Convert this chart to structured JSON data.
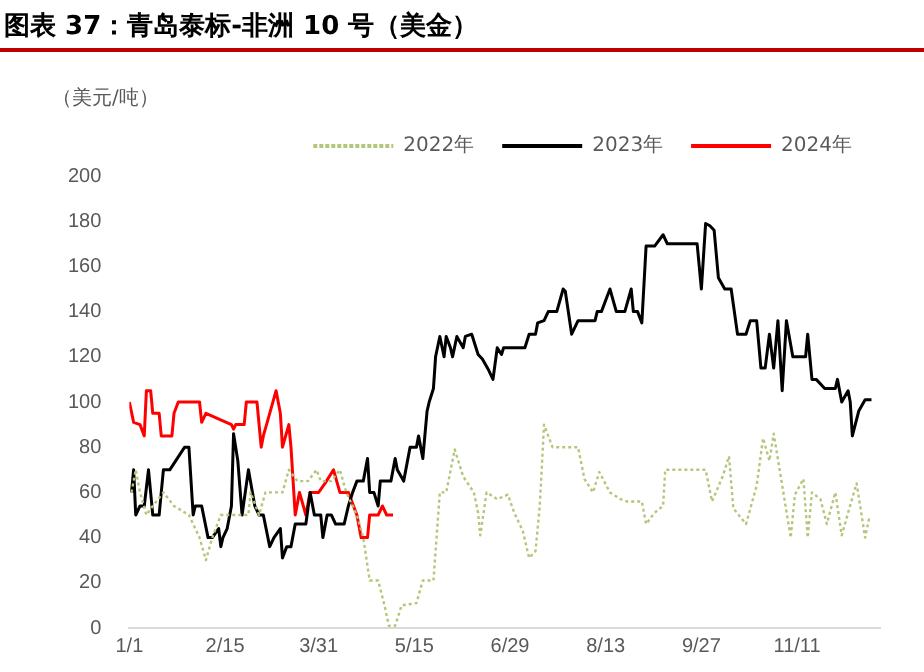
{
  "chart_data": {
    "type": "line",
    "title": "图表 37：青岛泰标-非洲 10 号（美金）",
    "ylabel": "（美元/吨）",
    "legend": "top",
    "grid": false,
    "marker": "none",
    "xlim": [
      "--01-01",
      "--12-20"
    ],
    "xticks": [
      {
        "value": "--01-01",
        "label": "1/1"
      },
      {
        "value": "--02-15",
        "label": "2/15"
      },
      {
        "value": "--03-31",
        "label": "3/31"
      },
      {
        "value": "--05-15",
        "label": "5/15"
      },
      {
        "value": "--06-29",
        "label": "6/29"
      },
      {
        "value": "--08-13",
        "label": "8/13"
      },
      {
        "value": "--09-27",
        "label": "9/27"
      },
      {
        "value": "--11-11",
        "label": "11/11"
      }
    ],
    "ylim": [
      0,
      200
    ],
    "yticks": [
      0,
      20,
      40,
      60,
      80,
      100,
      120,
      140,
      160,
      180,
      200
    ],
    "series": [
      {
        "name": "2022年",
        "color": "#b3c77a",
        "line_style": "dotted",
        "x": [
          "--01-02",
          "--01-04",
          "--01-06",
          "--01-09",
          "--01-12",
          "--01-17",
          "--01-22",
          "--01-29",
          "--02-03",
          "--02-06",
          "--02-09",
          "--02-13",
          "--02-26",
          "--02-27",
          "--03-03",
          "--03-06",
          "--03-14",
          "--03-17",
          "--03-21",
          "--03-26",
          "--03-30",
          "--04-01",
          "--04-06",
          "--04-10",
          "--04-13",
          "--04-18",
          "--04-21",
          "--04-24",
          "--04-28",
          "--05-01",
          "--05-03",
          "--05-06",
          "--05-09",
          "--05-16",
          "--05-19",
          "--05-24",
          "--05-27",
          "--05-30",
          "--06-03",
          "--06-07",
          "--06-12",
          "--06-14",
          "--06-15",
          "--06-18",
          "--06-23",
          "--06-28",
          "--07-01",
          "--07-05",
          "--07-08",
          "--07-11",
          "--07-13",
          "--07-15",
          "--07-19",
          "--07-31",
          "--08-03",
          "--08-07",
          "--08-10",
          "--08-15",
          "--08-20",
          "--08-23",
          "--08-30",
          "--09-01",
          "--09-05",
          "--09-09",
          "--09-10",
          "--09-29",
          "--10-02",
          "--10-07",
          "--10-10",
          "--10-12",
          "--10-18",
          "--10-23",
          "--10-26",
          "--10-29",
          "--10-31",
          "--11-03",
          "--11-08",
          "--11-10",
          "--11-14",
          "--11-16",
          "--11-18",
          "--11-22",
          "--11-25",
          "--11-29",
          "--12-02",
          "--12-05",
          "--12-09",
          "--12-13",
          "--12-15"
        ],
        "values": [
          60,
          70,
          60,
          50,
          54,
          60,
          54,
          50,
          40,
          30,
          40,
          50,
          50,
          60,
          50,
          60,
          60,
          70,
          65,
          65,
          70,
          65,
          65,
          70,
          60,
          50,
          40,
          21,
          21,
          10,
          1,
          1,
          10,
          11,
          21,
          21,
          60,
          60,
          79,
          67,
          60,
          51,
          41,
          60,
          57,
          59,
          51,
          43,
          31,
          34,
          54,
          90,
          80,
          80,
          66,
          60,
          69,
          60,
          57,
          56,
          56,
          46,
          51,
          54,
          70,
          70,
          56,
          67,
          76,
          53,
          46,
          63,
          84,
          74,
          86,
          69,
          40,
          59,
          66,
          40,
          60,
          57,
          46,
          60,
          41,
          51,
          64,
          40,
          49
        ]
      },
      {
        "name": "2023年",
        "color": "#000000",
        "line_style": "solid",
        "x": [
          "--01-02",
          "--01-03",
          "--01-04",
          "--01-06",
          "--01-08",
          "--01-10",
          "--01-12",
          "--01-15",
          "--01-17",
          "--01-20",
          "--01-27",
          "--01-29",
          "--01-31",
          "--02-01",
          "--02-04",
          "--02-07",
          "--02-09",
          "--02-12",
          "--02-13",
          "--02-14",
          "--02-16",
          "--02-18",
          "--02-19",
          "--02-21",
          "--02-23",
          "--02-26",
          "--03-01",
          "--03-03",
          "--03-05",
          "--03-08",
          "--03-10",
          "--03-13",
          "--03-14",
          "--03-16",
          "--03-18",
          "--03-20",
          "--03-25",
          "--03-27",
          "--03-29",
          "--04-01",
          "--04-02",
          "--04-04",
          "--04-06",
          "--04-08",
          "--04-12",
          "--04-14",
          "--04-16",
          "--04-18",
          "--04-21",
          "--04-23",
          "--04-24",
          "--04-26",
          "--04-28",
          "--04-29",
          "--05-04",
          "--05-06",
          "--05-07",
          "--05-10",
          "--05-13",
          "--05-16",
          "--05-17",
          "--05-19",
          "--05-21",
          "--05-22",
          "--05-24",
          "--05-25",
          "--05-27",
          "--05-29",
          "--05-30",
          "--06-01",
          "--06-02",
          "--06-04",
          "--06-07",
          "--06-08",
          "--06-11",
          "--06-14",
          "--06-16",
          "--06-19",
          "--06-21",
          "--06-23",
          "--06-25",
          "--06-26",
          "--07-06",
          "--07-08",
          "--07-11",
          "--07-12",
          "--07-15",
          "--07-17",
          "--07-21",
          "--07-24",
          "--07-25",
          "--07-28",
          "--07-31",
          "--08-08",
          "--08-09",
          "--08-11",
          "--08-15",
          "--08-18",
          "--08-22",
          "--08-25",
          "--08-26",
          "--08-28",
          "--08-30",
          "--09-01",
          "--09-05",
          "--09-09",
          "--09-11",
          "--09-25",
          "--09-27",
          "--09-29",
          "--10-01",
          "--10-03",
          "--10-05",
          "--10-08",
          "--10-11",
          "--10-14",
          "--10-18",
          "--10-20",
          "--10-23",
          "--10-25",
          "--10-27",
          "--10-29",
          "--10-31",
          "--11-02",
          "--11-04",
          "--11-06",
          "--11-09",
          "--11-15",
          "--11-16",
          "--11-18",
          "--11-20",
          "--11-24",
          "--11-29",
          "--11-30",
          "--12-02",
          "--12-05",
          "--12-06",
          "--12-07",
          "--12-10",
          "--12-13",
          "--12-16"
        ],
        "values": [
          60,
          70,
          50,
          54,
          54,
          70,
          50,
          50,
          70,
          70,
          80,
          80,
          50,
          54,
          54,
          40,
          40,
          44,
          36,
          40,
          44,
          54,
          86,
          74,
          50,
          70,
          54,
          50,
          50,
          36,
          40,
          44,
          31,
          36,
          36,
          46,
          46,
          60,
          50,
          50,
          40,
          50,
          50,
          46,
          46,
          54,
          60,
          65,
          65,
          75,
          60,
          60,
          54,
          65,
          65,
          75,
          70,
          65,
          80,
          80,
          85,
          75,
          96,
          100,
          106,
          120,
          129,
          120,
          129,
          124,
          120,
          129,
          124,
          129,
          130,
          121,
          119,
          114,
          110,
          124,
          121,
          124,
          124,
          130,
          130,
          135,
          136,
          140,
          140,
          150,
          149,
          130,
          136,
          136,
          140,
          140,
          150,
          140,
          140,
          150,
          140,
          140,
          135,
          169,
          169,
          174,
          170,
          170,
          150,
          179,
          178,
          176,
          155,
          150,
          150,
          130,
          130,
          136,
          136,
          115,
          115,
          130,
          115,
          136,
          105,
          136,
          120,
          120,
          130,
          110,
          110,
          106,
          106,
          110,
          100,
          105,
          100,
          85,
          96,
          101,
          101
        ]
      },
      {
        "name": "2024年",
        "color": "#ff0000",
        "line_style": "solid",
        "x": [
          "--01-01",
          "--01-03",
          "--01-06",
          "--01-08",
          "--01-09",
          "--01-11",
          "--01-12",
          "--01-15",
          "--01-16",
          "--01-21",
          "--01-22",
          "--01-24",
          "--02-03",
          "--02-04",
          "--02-06",
          "--02-18",
          "--02-19",
          "--02-20",
          "--02-24",
          "--02-25",
          "--03-02",
          "--03-04",
          "--03-05",
          "--03-08",
          "--03-11",
          "--03-13",
          "--03-14",
          "--03-17",
          "--03-18",
          "--03-20",
          "--03-22",
          "--03-25",
          "--03-27",
          "--03-31",
          "--04-03",
          "--04-07",
          "--04-10",
          "--04-14",
          "--04-18",
          "--04-20",
          "--04-23",
          "--04-24",
          "--04-28",
          "--04-30",
          "--05-02",
          "--05-05"
        ],
        "values": [
          100,
          91,
          90,
          85,
          105,
          105,
          95,
          95,
          85,
          85,
          95,
          100,
          100,
          91,
          95,
          90,
          88,
          90,
          90,
          100,
          100,
          80,
          85,
          95,
          105,
          95,
          80,
          90,
          80,
          50,
          60,
          50,
          60,
          60,
          64,
          70,
          60,
          60,
          50,
          40,
          40,
          50,
          50,
          54,
          50,
          50
        ]
      }
    ]
  }
}
